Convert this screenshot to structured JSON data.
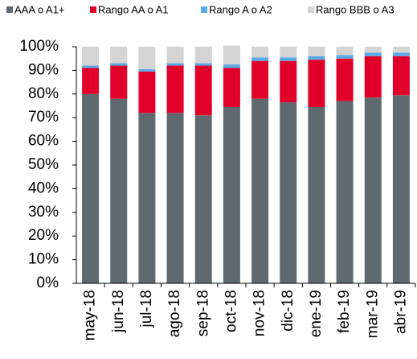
{
  "chart_data": {
    "type": "stacked-bar",
    "categories": [
      "may-18",
      "jun-18",
      "jul-18",
      "ago-18",
      "sep-18",
      "oct-18",
      "nov-18",
      "dic-18",
      "ene-19",
      "feb-19",
      "mar-19",
      "abr-19"
    ],
    "series": [
      {
        "name": "AAA o A1+",
        "color": "#5f6a70",
        "values": [
          80,
          78,
          72,
          72,
          71,
          74.5,
          78,
          76.5,
          74.5,
          77,
          78.5,
          79.5
        ]
      },
      {
        "name": "Rango AA o A1",
        "color": "#e0002a",
        "values": [
          11,
          14,
          17.5,
          20,
          21,
          16.5,
          16,
          17.5,
          20,
          18,
          17.5,
          16.5
        ]
      },
      {
        "name": "Rango A o A2",
        "color": "#5aa9e6",
        "values": [
          1,
          1,
          1,
          1,
          1,
          1.5,
          1.5,
          1.5,
          1.5,
          1.5,
          1.5,
          1.5
        ]
      },
      {
        "name": "Rango BBB o A3",
        "color": "#d4d4d4",
        "values": [
          8,
          7,
          9.5,
          7,
          7,
          8,
          4.5,
          4.5,
          4,
          3.5,
          2.5,
          2.5
        ]
      }
    ],
    "ylim": [
      0,
      100
    ],
    "yticks": [
      {
        "value": 0,
        "label": "0%"
      },
      {
        "value": 10,
        "label": "10%"
      },
      {
        "value": 20,
        "label": "20%"
      },
      {
        "value": 30,
        "label": "30%"
      },
      {
        "value": 40,
        "label": "40%"
      },
      {
        "value": 50,
        "label": "50%"
      },
      {
        "value": 60,
        "label": "60%"
      },
      {
        "value": 70,
        "label": "70%"
      },
      {
        "value": 80,
        "label": "80%"
      },
      {
        "value": 90,
        "label": "90%"
      },
      {
        "value": 100,
        "label": "100%"
      }
    ]
  }
}
